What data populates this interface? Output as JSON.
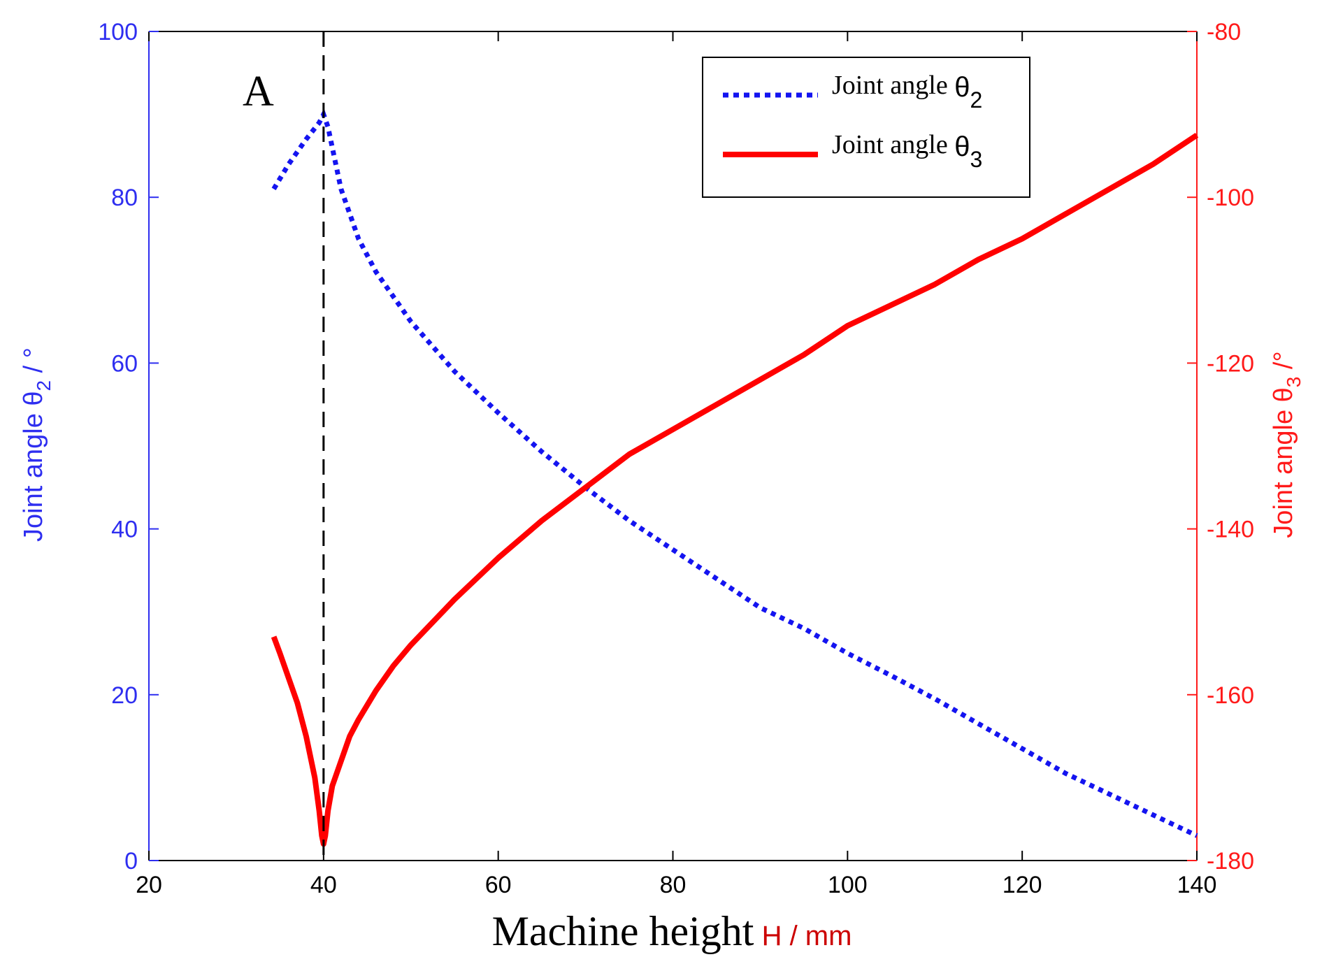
{
  "chart_data": {
    "type": "line",
    "title": "",
    "annotation": "A",
    "annotation_line_x": 40,
    "xlabel": {
      "main": "Machine height",
      "unit": "H / mm"
    },
    "ylabel_left": {
      "prefix": "Joint angle ",
      "symbol": "θ",
      "subscript": "2",
      "suffix": " / °"
    },
    "ylabel_right": {
      "prefix": "Joint angle ",
      "symbol": "θ",
      "subscript": "3",
      "suffix": " /°"
    },
    "xlim": [
      20,
      140
    ],
    "ylim_left": [
      0,
      100
    ],
    "ylim_right": [
      -180,
      -80
    ],
    "xticks": [
      20,
      40,
      60,
      80,
      100,
      120,
      140
    ],
    "yticks_left": [
      0,
      20,
      40,
      60,
      80,
      100
    ],
    "yticks_right": [
      -180,
      -160,
      -140,
      -120,
      -100,
      -80
    ],
    "colors": {
      "left_axis": "#2e2ef0",
      "right_axis": "#ff1a1a",
      "theta2": "#1414f0",
      "theta3": "#ff0000"
    },
    "legend": {
      "position": "top-right",
      "entries": [
        {
          "prefix": "Joint angle ",
          "symbol": "θ",
          "subscript": "2",
          "style": "dotted"
        },
        {
          "prefix": "Joint angle ",
          "symbol": "θ",
          "subscript": "3",
          "style": "solid"
        }
      ]
    },
    "series": [
      {
        "name": "Joint angle θ2",
        "axis": "left",
        "x": [
          34.3,
          36,
          38,
          39.5,
          40,
          40.5,
          41,
          42,
          44,
          46,
          48,
          50,
          55,
          60,
          65,
          70,
          75,
          80,
          85,
          90,
          95,
          100,
          105,
          110,
          115,
          120,
          125,
          130,
          135,
          140
        ],
        "y": [
          81,
          84,
          87,
          89,
          90,
          88.5,
          86,
          81,
          75,
          71,
          68,
          65,
          59,
          54,
          49.3,
          45,
          41,
          37.5,
          34,
          30.5,
          28,
          25,
          22.3,
          19.5,
          16.5,
          13.5,
          10.5,
          8,
          5.5,
          3
        ]
      },
      {
        "name": "Joint angle θ3",
        "axis": "right",
        "x": [
          34.3,
          35,
          36,
          37,
          38,
          39,
          39.5,
          39.8,
          40,
          40.2,
          40.5,
          41,
          42,
          43,
          44,
          46,
          48,
          50,
          55,
          60,
          65,
          70,
          75,
          80,
          85,
          90,
          95,
          100,
          105,
          110,
          115,
          120,
          125,
          130,
          135,
          140
        ],
        "y": [
          -153,
          -155,
          -158,
          -161,
          -165,
          -170,
          -174,
          -177,
          -178,
          -177,
          -174,
          -171,
          -168,
          -165,
          -163,
          -159.5,
          -156.5,
          -154,
          -148.5,
          -143.5,
          -139,
          -135,
          -131,
          -128,
          -125,
          -122,
          -119,
          -115.5,
          -113,
          -110.5,
          -107.5,
          -105,
          -102,
          -99,
          -96,
          -92.5
        ]
      }
    ]
  }
}
